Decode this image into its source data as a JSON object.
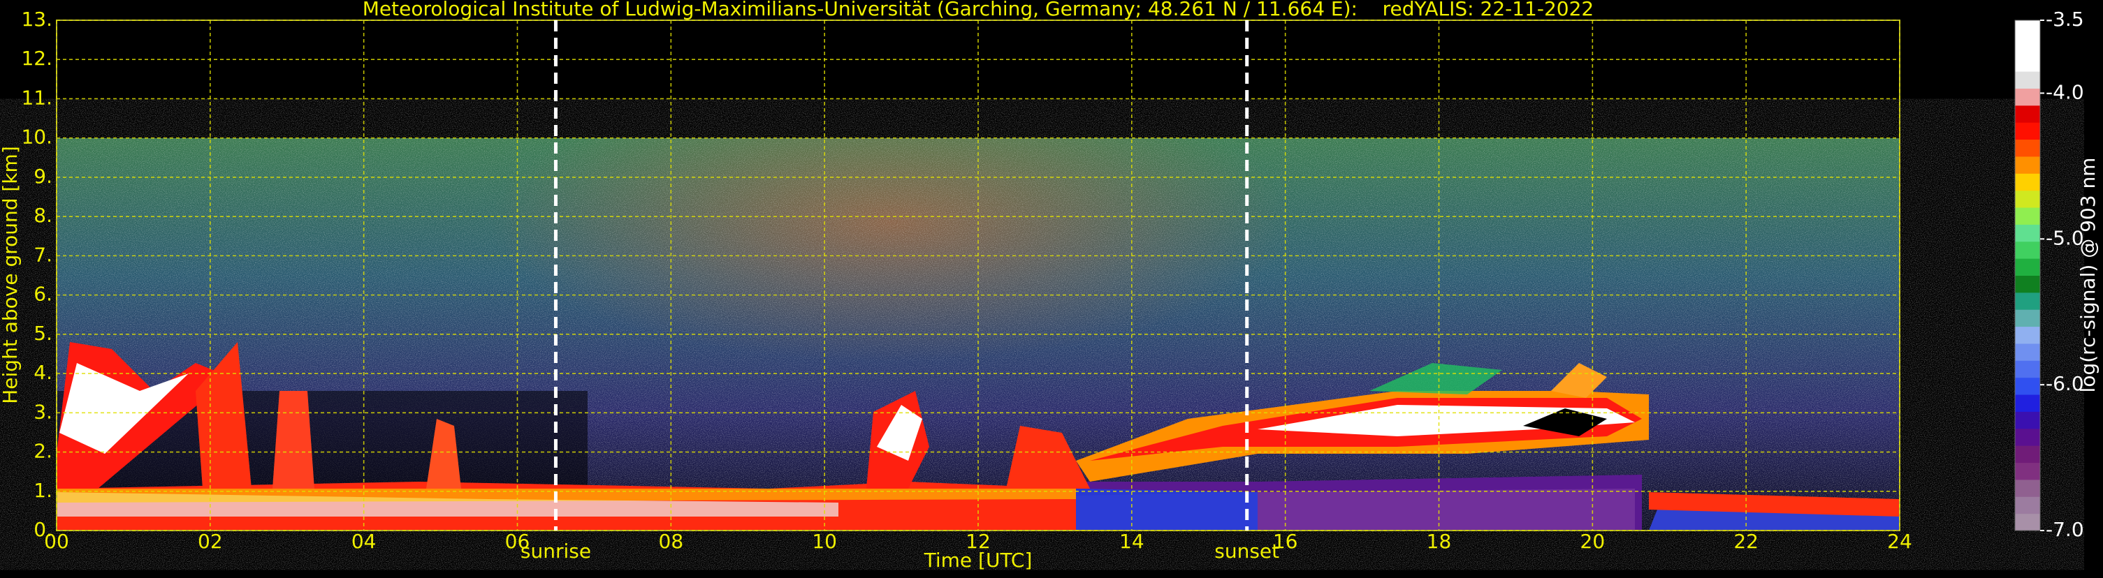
{
  "chart_data": {
    "type": "heatmap",
    "title": "Meteorological Institute of Ludwig-Maximilians-Universität (Garching, Germany; 48.261 N / 11.664 E):    redYALIS: 22-11-2022",
    "xlabel": "Time [UTC]",
    "ylabel": "Height above ground [km]",
    "xlim": [
      0,
      24
    ],
    "ylim": [
      0,
      13
    ],
    "xticks": [
      {
        "value": 0,
        "label": "00"
      },
      {
        "value": 2,
        "label": "02"
      },
      {
        "value": 4,
        "label": "04"
      },
      {
        "value": 6,
        "label": "06"
      },
      {
        "value": 8,
        "label": "08"
      },
      {
        "value": 10,
        "label": "10"
      },
      {
        "value": 12,
        "label": "12"
      },
      {
        "value": 14,
        "label": "14"
      },
      {
        "value": 16,
        "label": "16"
      },
      {
        "value": 18,
        "label": "18"
      },
      {
        "value": 20,
        "label": "20"
      },
      {
        "value": 22,
        "label": "22"
      },
      {
        "value": 24,
        "label": "24"
      }
    ],
    "yticks": [
      {
        "value": 0,
        "label": "0."
      },
      {
        "value": 1,
        "label": "1."
      },
      {
        "value": 2,
        "label": "2."
      },
      {
        "value": 3,
        "label": "3."
      },
      {
        "value": 4,
        "label": "4."
      },
      {
        "value": 5,
        "label": "5."
      },
      {
        "value": 6,
        "label": "6."
      },
      {
        "value": 7,
        "label": "7."
      },
      {
        "value": 8,
        "label": "8."
      },
      {
        "value": 9,
        "label": "9."
      },
      {
        "value": 10,
        "label": "10."
      },
      {
        "value": 11,
        "label": "11."
      },
      {
        "value": 12,
        "label": "12."
      },
      {
        "value": 13,
        "label": "13."
      }
    ],
    "grid": true,
    "annotations": [
      {
        "x": 6.5,
        "label": "sunrise"
      },
      {
        "x": 15.5,
        "label": "sunset"
      }
    ],
    "colorbar": {
      "label": "log(rc-signal) @ 903 nm",
      "clim": [
        -7.0,
        -3.5
      ],
      "ticks": [
        {
          "value": -7.0,
          "label": "-7.0"
        },
        {
          "value": -6.0,
          "label": "-6.0"
        },
        {
          "value": -5.0,
          "label": "-5.0"
        },
        {
          "value": -4.0,
          "label": "-4.0"
        },
        {
          "value": -3.5,
          "label": "-3.5"
        }
      ],
      "colors": [
        "#a890a8",
        "#9c7ca0",
        "#906090",
        "#803080",
        "#701c78",
        "#5a1090",
        "#3a10b0",
        "#2020e0",
        "#3050f0",
        "#5070f0",
        "#7090f0",
        "#90b0f0",
        "#60b0b0",
        "#20a080",
        "#108020",
        "#20b040",
        "#40d060",
        "#60e090",
        "#90ee50",
        "#d0e820",
        "#ffd000",
        "#ff9000",
        "#ff5000",
        "#ff1000",
        "#e00000",
        "#f0a0a0",
        "#e0e0e0",
        "#ffffff",
        "#ffffff",
        "#ffffff"
      ]
    }
  }
}
